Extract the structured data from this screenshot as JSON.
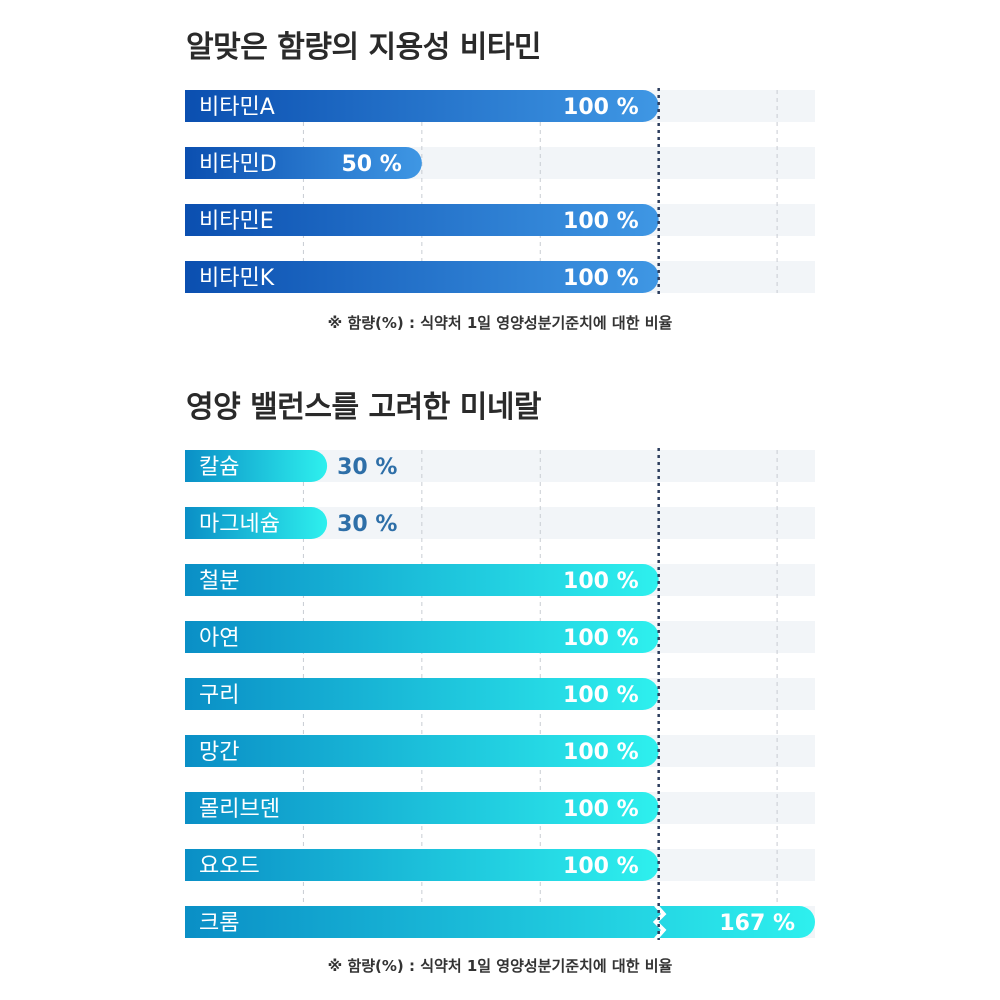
{
  "vitamins": {
    "title": "알맞은 함량의 지용성 비타민",
    "footnote": "※ 함량(%) : 식약처 1일 영양성분기준치에 대한 비율",
    "colors": {
      "start": "#0b4fb0",
      "end": "#3f97e4",
      "inside_value": "#ffffff",
      "outside_value": "#2f6fb8"
    },
    "chart_data": {
      "type": "bar",
      "orientation": "horizontal",
      "categories": [
        "비타민A",
        "비타민D",
        "비타민E",
        "비타민K"
      ],
      "values": [
        100,
        50,
        100,
        100
      ],
      "value_labels": [
        "100 %",
        "50 %",
        "100 %",
        "100 %"
      ],
      "xlim": [
        0,
        133
      ],
      "reference_line": 100,
      "grid": true
    }
  },
  "minerals": {
    "title": "영양 밸런스를 고려한 미네랄",
    "footnote": "※ 함량(%) : 식약처 1일 영양성분기준치에 대한 비율",
    "colors": {
      "start": "#0a8fc6",
      "end": "#2ef0ee",
      "inside_value": "#ffffff",
      "outside_value": "#2e6fa8"
    },
    "chart_data": {
      "type": "bar",
      "orientation": "horizontal",
      "categories": [
        "칼슘",
        "마그네슘",
        "철분",
        "아연",
        "구리",
        "망간",
        "몰리브덴",
        "요오드",
        "크롬"
      ],
      "values": [
        30,
        30,
        100,
        100,
        100,
        100,
        100,
        100,
        167
      ],
      "value_labels": [
        "30 %",
        "30 %",
        "100 %",
        "100 %",
        "100 %",
        "100 %",
        "100 %",
        "100 %",
        "167 %"
      ],
      "xlim": [
        0,
        133
      ],
      "reference_line": 100,
      "grid": true,
      "axis_break_above": 100
    }
  }
}
